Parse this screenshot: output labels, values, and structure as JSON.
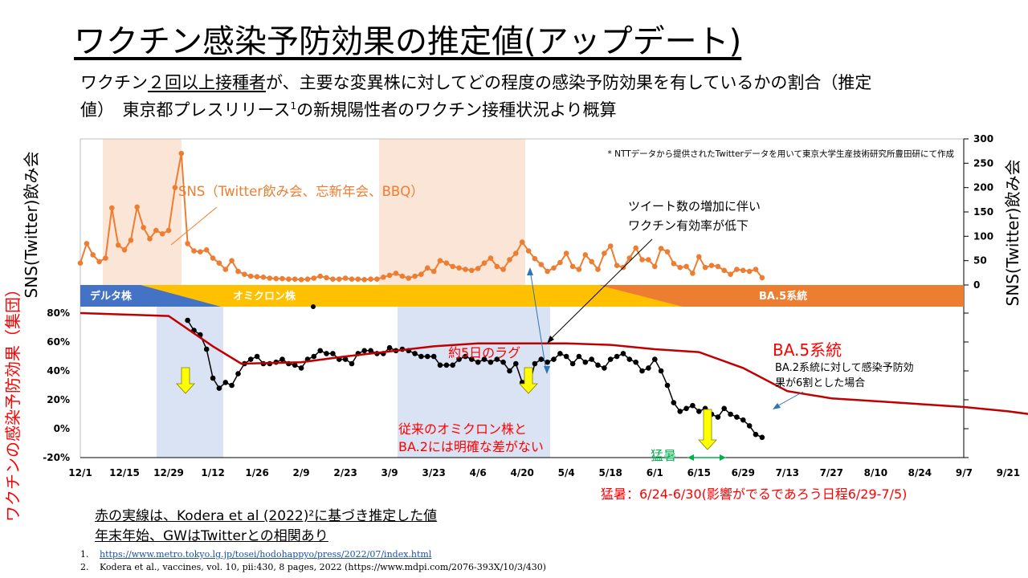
{
  "title": "ワクチン感染予防効果の推定値(アップデート)",
  "subtitle_pre": "ワクチン",
  "subtitle_underlined": "２回以上接種者",
  "subtitle_post": "が、主要な変異株に対してどの程度の感染予防効果を有しているかの割合（推定",
  "subtitle_line2_a": "値）　東京都プレスリリース",
  "subtitle_line2_sup": "1",
  "subtitle_line2_b": "の新規陽性者のワクチン接種状況より概算",
  "chart_data": {
    "type": "line",
    "source_note": "* NTTデータから提供されたTwitterデータを用いて東京大学生産技術研究所豊田研にて作成",
    "x_tick_labels": [
      "12/1",
      "12/15",
      "12/29",
      "1/12",
      "1/26",
      "2/9",
      "2/23",
      "3/9",
      "3/23",
      "4/6",
      "4/20",
      "5/4",
      "5/18",
      "6/1",
      "6/15",
      "6/29",
      "7/13",
      "7/27",
      "8/10",
      "8/24",
      "9/7",
      "9/21"
    ],
    "left_axis_label": "SNS(Twitter)飲み会",
    "right_axis_label": "SNS(Twitter)飲み会",
    "right_axis_ticks": [
      "300",
      "250",
      "200",
      "150",
      "100",
      "50",
      "0"
    ],
    "right_axis_range": [
      0,
      300
    ],
    "efficacy_axis_label": "ワクチンの感染予防効果（集団）",
    "efficacy_axis_ticks": [
      "80%",
      "60%",
      "40%",
      "20%",
      "0%",
      "-20%"
    ],
    "efficacy_axis_range": [
      -20,
      80
    ],
    "variant_bands": [
      {
        "label": "デルタ株",
        "color": "#4472c4"
      },
      {
        "label": "オミクロン株",
        "color": "#ffc000"
      },
      {
        "label": "BA.5系統",
        "color": "#ed7d31"
      }
    ],
    "series": [
      {
        "name": "SNS（Twitter飲み会、忘新年会、BBQ）",
        "color": "#ed7d31",
        "x_start": "12/1",
        "x_step_days": 2,
        "values": [
          45,
          85,
          62,
          48,
          55,
          158,
          82,
          72,
          92,
          160,
          118,
          95,
          112,
          105,
          112,
          200,
          270,
          85,
          70,
          68,
          72,
          55,
          45,
          32,
          50,
          28,
          22,
          18,
          17,
          16,
          14,
          13,
          13,
          12,
          12,
          11,
          12,
          14,
          18,
          15,
          12,
          12,
          14,
          12,
          12,
          11,
          12,
          12,
          16,
          20,
          24,
          18,
          14,
          18,
          22,
          35,
          28,
          50,
          45,
          38,
          35,
          32,
          30,
          34,
          45,
          55,
          38,
          32,
          52,
          65,
          88,
          70,
          54,
          42,
          28,
          35,
          46,
          65,
          38,
          32,
          62,
          48,
          32,
          65,
          80,
          40,
          36,
          55,
          76,
          52,
          52,
          38,
          75,
          68,
          44,
          36,
          38,
          24,
          58,
          36,
          40,
          38,
          30,
          22,
          32,
          30,
          28,
          32,
          15
        ]
      },
      {
        "name": "ワクチン有効率",
        "color": "#000000",
        "x_start": "12/1",
        "x_step_days": 2,
        "values": [
          null,
          null,
          null,
          null,
          null,
          null,
          null,
          null,
          null,
          null,
          null,
          null,
          null,
          null,
          null,
          null,
          null,
          75,
          68,
          65,
          55,
          35,
          28,
          32,
          30,
          38,
          45,
          48,
          50,
          45,
          45,
          46,
          48,
          45,
          44,
          42,
          48,
          50,
          54,
          52,
          52,
          48,
          48,
          45,
          52,
          54,
          54,
          52,
          52,
          56,
          54,
          55,
          54,
          52,
          50,
          50,
          50,
          44,
          44,
          44,
          48,
          50,
          48,
          46,
          48,
          46,
          48,
          46,
          40,
          45,
          32,
          28,
          45,
          48,
          46,
          48,
          52,
          50,
          45,
          50,
          46,
          48,
          44,
          42,
          48,
          50,
          52,
          48,
          46,
          40,
          42,
          48,
          40,
          30,
          18,
          12,
          14,
          16,
          12,
          14,
          10,
          8,
          14,
          10,
          8,
          6,
          2,
          -4,
          -6
        ]
      },
      {
        "name": "赤の実線（Kodera et al (2022)に基づく推定値）",
        "color": "#c00000",
        "points": [
          [
            "12/1",
            80
          ],
          [
            "12/29",
            78
          ],
          [
            "1/12",
            57
          ],
          [
            "1/21",
            45
          ],
          [
            "2/9",
            46
          ],
          [
            "2/23",
            50
          ],
          [
            "3/23",
            57
          ],
          [
            "4/6",
            59
          ],
          [
            "5/4",
            59
          ],
          [
            "5/18",
            58
          ],
          [
            "6/1",
            55
          ],
          [
            "6/15",
            53
          ],
          [
            "6/29",
            42
          ],
          [
            "7/13",
            26
          ],
          [
            "7/27",
            21
          ],
          [
            "8/10",
            19
          ],
          [
            "8/24",
            17
          ],
          [
            "9/7",
            15
          ],
          [
            "9/21",
            12
          ],
          [
            "9/28",
            10
          ]
        ]
      }
    ],
    "annotations": [
      "SNS（Twitter飲み会、忘新年会、BBQ）",
      "ツイート数の増加に伴い",
      "ワクチン有効率が低下",
      "約5日のラグ",
      "BA.5系統",
      "BA.2系統に対して感染予防効",
      "果が6割とした場合",
      "従来のオミクロン株と",
      "BA.2には明確な差がない",
      "猛暑",
      "猛暑：6/24-6/30(影響がでるであろう日程6/29-7/5)"
    ]
  },
  "notes": [
    "赤の実線は、Kodera et al (2022)²に基づき推定した値",
    "年末年始、GWはTwitterとの相関あり"
  ],
  "references": [
    {
      "num": "1.",
      "text": "https://www.metro.tokyo.lg.jp/tosei/hodohappyo/press/2022/07/index.html"
    },
    {
      "num": "2.",
      "text": "Kodera et al., vaccines, vol. 10, pii:430, 8 pages, 2022 (https://www.mdpi.com/2076-393X/10/3/430)"
    }
  ]
}
